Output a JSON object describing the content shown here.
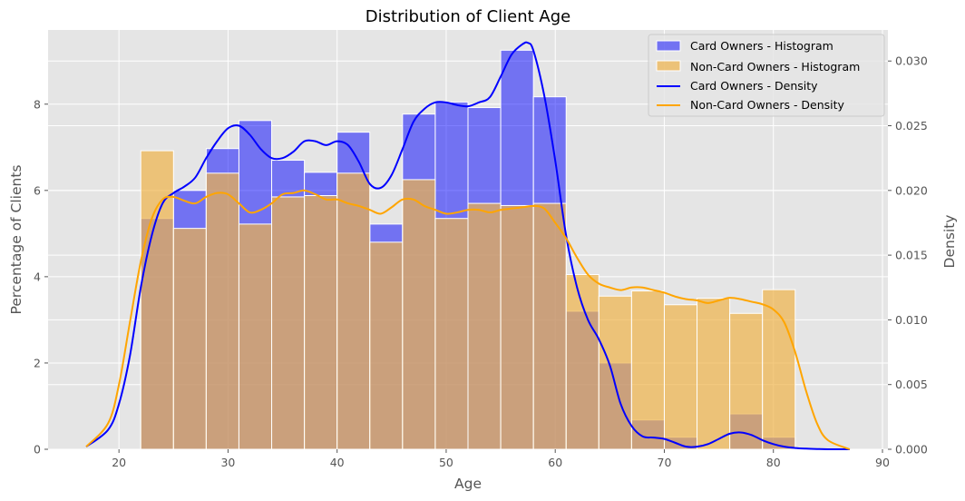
{
  "chart_data": {
    "type": "histogram",
    "title": "Distribution of Client Age",
    "xlabel": "Age",
    "ylabel": "Percentage of Clients",
    "y2label": "Density",
    "xlim": [
      13.5,
      90.5
    ],
    "ylim": [
      0,
      9.72
    ],
    "y2lim": [
      0,
      0.0324
    ],
    "xticks": [
      20,
      30,
      40,
      50,
      60,
      70,
      80,
      90
    ],
    "yticks": [
      0,
      2,
      4,
      6,
      8
    ],
    "y2ticks": [
      0.0,
      0.005,
      0.01,
      0.015,
      0.02,
      0.025,
      0.03
    ],
    "y2tick_labels": [
      "0.000",
      "0.005",
      "0.010",
      "0.015",
      "0.020",
      "0.025",
      "0.030"
    ],
    "grid": true,
    "legend_position": "top-right",
    "bin_edges": [
      22,
      25,
      28,
      31,
      34,
      37,
      40,
      43,
      46,
      49,
      52,
      55,
      58,
      61,
      64,
      67,
      70,
      73,
      76,
      79,
      82
    ],
    "histograms": [
      {
        "name": "Card Owners - Histogram",
        "color": "#0000ff",
        "values": [
          5.35,
          6.0,
          6.97,
          7.62,
          6.7,
          6.42,
          7.35,
          5.22,
          7.77,
          8.05,
          7.92,
          9.25,
          8.17,
          3.2,
          2.0,
          0.68,
          0.28,
          0.0,
          0.82,
          0.28
        ]
      },
      {
        "name": "Non-Card Owners - Histogram",
        "color": "#f0b44a",
        "values": [
          6.92,
          5.12,
          6.4,
          5.22,
          5.85,
          5.88,
          6.4,
          4.8,
          6.25,
          5.35,
          5.7,
          5.65,
          5.7,
          4.05,
          3.55,
          3.67,
          3.35,
          3.5,
          3.15,
          3.7
        ]
      }
    ],
    "densities": [
      {
        "name": "Card Owners - Density",
        "color": "#0000ff",
        "x": [
          17,
          19,
          20,
          21,
          22,
          23,
          24,
          25,
          26,
          27,
          28,
          29,
          30,
          31,
          32,
          33,
          34,
          35,
          36,
          37,
          38,
          39,
          40,
          41,
          42,
          43,
          44,
          45,
          46,
          47,
          48,
          49,
          50,
          51,
          52,
          53,
          54,
          55,
          56,
          57,
          57.5,
          58,
          59,
          60,
          61,
          62,
          63,
          64,
          65,
          66,
          67,
          68,
          69,
          70,
          71,
          72,
          73,
          74,
          75,
          76,
          77,
          78,
          79,
          80,
          81,
          82,
          83,
          84,
          85,
          87
        ],
        "y": [
          0.0002,
          0.0015,
          0.0035,
          0.0072,
          0.0125,
          0.0165,
          0.019,
          0.0198,
          0.0203,
          0.021,
          0.0225,
          0.0238,
          0.0248,
          0.025,
          0.0243,
          0.0232,
          0.0225,
          0.0225,
          0.023,
          0.0238,
          0.0238,
          0.0235,
          0.0238,
          0.0235,
          0.0222,
          0.0205,
          0.0202,
          0.0212,
          0.0232,
          0.0253,
          0.0263,
          0.0268,
          0.0268,
          0.0266,
          0.0265,
          0.0268,
          0.0272,
          0.0288,
          0.0305,
          0.0313,
          0.0314,
          0.0308,
          0.0273,
          0.0223,
          0.0165,
          0.0125,
          0.01,
          0.0085,
          0.0065,
          0.0035,
          0.0018,
          0.001,
          0.0009,
          0.0008,
          0.0005,
          0.0002,
          0.0002,
          0.0004,
          0.0008,
          0.0012,
          0.0013,
          0.0011,
          0.0007,
          0.0004,
          0.0002,
          0.0001,
          5e-05,
          2e-05,
          0.0,
          0.0
        ]
      },
      {
        "name": "Non-Card Owners - Density",
        "color": "#ffa500",
        "x": [
          17,
          19,
          20,
          21,
          22,
          23,
          24,
          25,
          26,
          27,
          28,
          29,
          30,
          31,
          32,
          33,
          34,
          35,
          36,
          37,
          38,
          39,
          40,
          41,
          42,
          43,
          44,
          45,
          46,
          47,
          48,
          49,
          50,
          51,
          52,
          53,
          54,
          55,
          56,
          57,
          58,
          59,
          60,
          61,
          62,
          63,
          64,
          65,
          66,
          67,
          68,
          69,
          70,
          71,
          72,
          73,
          74,
          75,
          76,
          77,
          78,
          79,
          80,
          81,
          82,
          83,
          84,
          85,
          87
        ],
        "y": [
          0.0002,
          0.002,
          0.005,
          0.0098,
          0.0145,
          0.0178,
          0.0193,
          0.0195,
          0.0192,
          0.019,
          0.0195,
          0.0198,
          0.0197,
          0.019,
          0.0183,
          0.0185,
          0.019,
          0.0197,
          0.0198,
          0.02,
          0.0197,
          0.0193,
          0.0193,
          0.019,
          0.0188,
          0.0185,
          0.0182,
          0.0187,
          0.0193,
          0.0193,
          0.0188,
          0.0185,
          0.0182,
          0.0183,
          0.0185,
          0.0185,
          0.0183,
          0.0185,
          0.0186,
          0.0187,
          0.0188,
          0.0186,
          0.0175,
          0.0163,
          0.0148,
          0.0135,
          0.0128,
          0.0125,
          0.0123,
          0.0125,
          0.0125,
          0.0123,
          0.0121,
          0.0118,
          0.0116,
          0.0115,
          0.0113,
          0.0115,
          0.0117,
          0.0116,
          0.0114,
          0.0112,
          0.0108,
          0.0098,
          0.0075,
          0.0045,
          0.002,
          0.0007,
          0.0
        ]
      }
    ]
  }
}
